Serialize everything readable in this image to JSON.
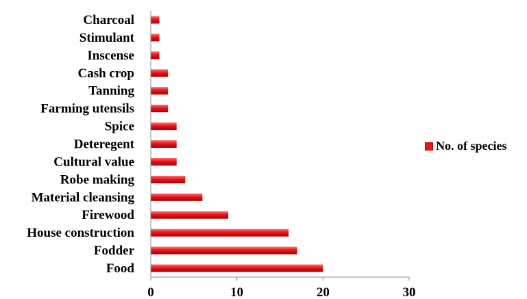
{
  "chart_data": {
    "type": "bar",
    "orientation": "horizontal",
    "categories": [
      "Food",
      "Fodder",
      "House construction",
      "Firewood",
      "Material cleansing",
      "Robe making",
      "Cultural value",
      "Deteregent",
      "Spice",
      "Farming utensils",
      "Tanning",
      "Cash crop",
      "Inscense",
      "Stimulant",
      "Charcoal"
    ],
    "series": [
      {
        "name": "No. of species",
        "values": [
          20,
          17,
          16,
          9,
          6,
          4,
          3,
          3,
          3,
          2,
          2,
          2,
          1,
          1,
          1
        ]
      }
    ],
    "xlim": [
      0,
      30
    ],
    "xticks": [
      "0",
      "10",
      "20",
      "30"
    ],
    "grid": false,
    "legend_position": "right",
    "colors": {
      "bar": "#e8141a",
      "bar_dark": "#a80000",
      "bar_light": "#ff6a6a"
    }
  }
}
